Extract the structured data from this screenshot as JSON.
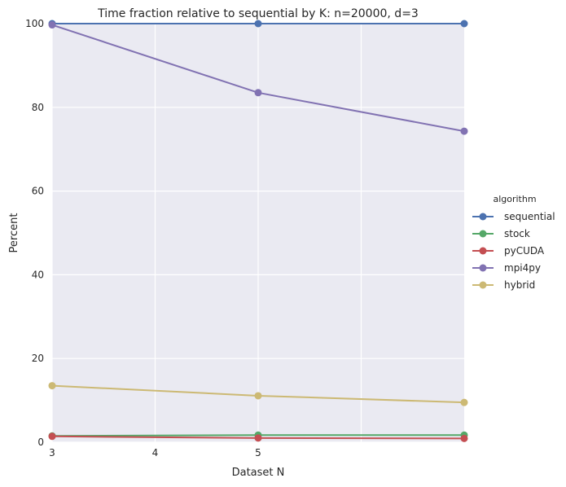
{
  "chart_data": {
    "type": "line",
    "title": "Time fraction relative to sequential by K: n=20000, d=3",
    "xlabel": "Dataset N",
    "ylabel": "Percent",
    "x_ticks": [
      3,
      4,
      5
    ],
    "y_ticks": [
      0,
      20,
      40,
      60,
      80,
      100
    ],
    "xlim": [
      3,
      7
    ],
    "ylim": [
      0,
      100
    ],
    "grid": true,
    "legend": {
      "title": "algorithm",
      "placement": "right"
    },
    "x": [
      3,
      5,
      7
    ],
    "series": [
      {
        "name": "sequential",
        "color": "#4c72b0",
        "values": [
          100,
          100,
          100
        ]
      },
      {
        "name": "stock",
        "color": "#55a868",
        "values": [
          1.5,
          1.7,
          1.7
        ]
      },
      {
        "name": "pyCUDA",
        "color": "#c44e52",
        "values": [
          1.4,
          1.0,
          0.9
        ]
      },
      {
        "name": "mpi4py",
        "color": "#8172b2",
        "values": [
          99.7,
          83.5,
          74.3
        ]
      },
      {
        "name": "hybrid",
        "color": "#ccb974",
        "values": [
          13.5,
          11.1,
          9.5
        ]
      }
    ]
  }
}
